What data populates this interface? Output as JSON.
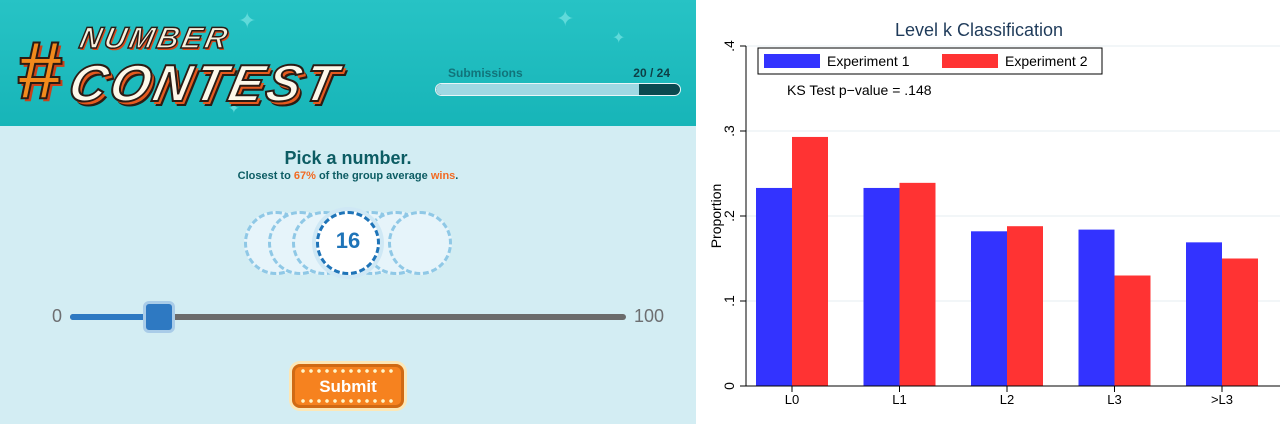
{
  "game": {
    "logo": {
      "hash": "#",
      "line1": "NUMBER",
      "line2": "CONTEST"
    },
    "submissions": {
      "label": "Submissions",
      "count_text": "20 / 24",
      "progress": 0.833
    },
    "prompt": {
      "title": "Pick a number.",
      "line_prefix": "Closest to ",
      "percent": "67%",
      "line_middle": " of the group average ",
      "wins": "wins",
      "line_suffix": "."
    },
    "selected_number": "16",
    "slider": {
      "min": "0",
      "max": "100",
      "value": 16
    },
    "submit_label": "Submit",
    "colors": {
      "header": "#1fbcbf",
      "panel": "#d3edf3",
      "accent": "#f26a22",
      "slider": "#2e79c2"
    }
  },
  "chart_data": {
    "type": "bar",
    "title": "Level k Classification",
    "ylabel": "Proportion",
    "xlabel": "",
    "categories": [
      "L0",
      "L1",
      "L2",
      "L3",
      ">L3"
    ],
    "series": [
      {
        "name": "Experiment 1",
        "color": "#3333ff",
        "values": [
          0.233,
          0.233,
          0.182,
          0.184,
          0.169
        ]
      },
      {
        "name": "Experiment 2",
        "color": "#ff3333",
        "values": [
          0.293,
          0.239,
          0.188,
          0.13,
          0.15
        ]
      }
    ],
    "ylim": [
      0,
      0.4
    ],
    "yticks": [
      0,
      0.1,
      0.2,
      0.3,
      0.4
    ],
    "ytick_labels": [
      "0",
      ".1",
      ".2",
      ".3",
      ".4"
    ],
    "annotation": "KS Test p−value = .148",
    "legend": "top-left",
    "grid": true
  }
}
